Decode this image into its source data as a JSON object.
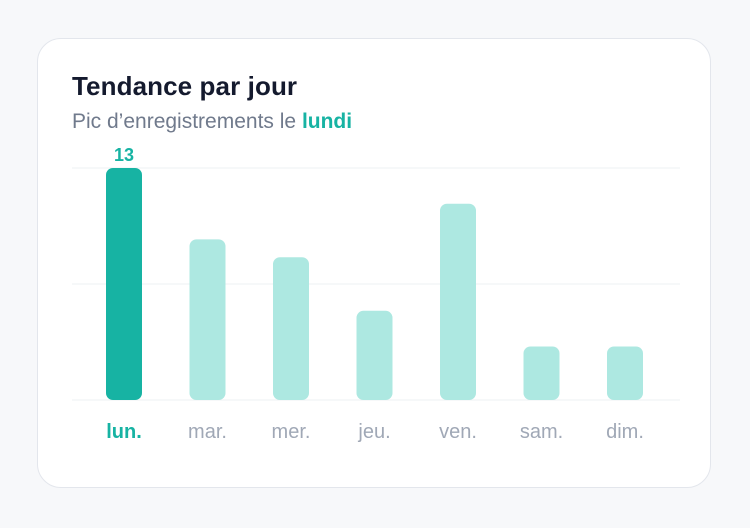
{
  "card": {
    "title": "Tendance par jour",
    "subtitle_prefix": "Pic d’enregistrements le ",
    "subtitle_highlight": "lundi"
  },
  "colors": {
    "accent": "#17b3a3",
    "bar_muted": "#ade8e1",
    "gridline": "#eef0f3",
    "title": "#141a2e",
    "subtitle": "#707a8c",
    "tick_label": "#a0a8b6"
  },
  "chart_data": {
    "type": "bar",
    "title": "Tendance par jour",
    "subtitle": "Pic d’enregistrements le lundi",
    "categories": [
      "lun.",
      "mar.",
      "mer.",
      "jeu.",
      "ven.",
      "sam.",
      "dim."
    ],
    "values": [
      13,
      9,
      8,
      5,
      11,
      3,
      3
    ],
    "highlight_index": 0,
    "data_labels": [
      "13"
    ],
    "ylim": [
      0,
      13
    ],
    "grid": true,
    "legend": "none"
  }
}
